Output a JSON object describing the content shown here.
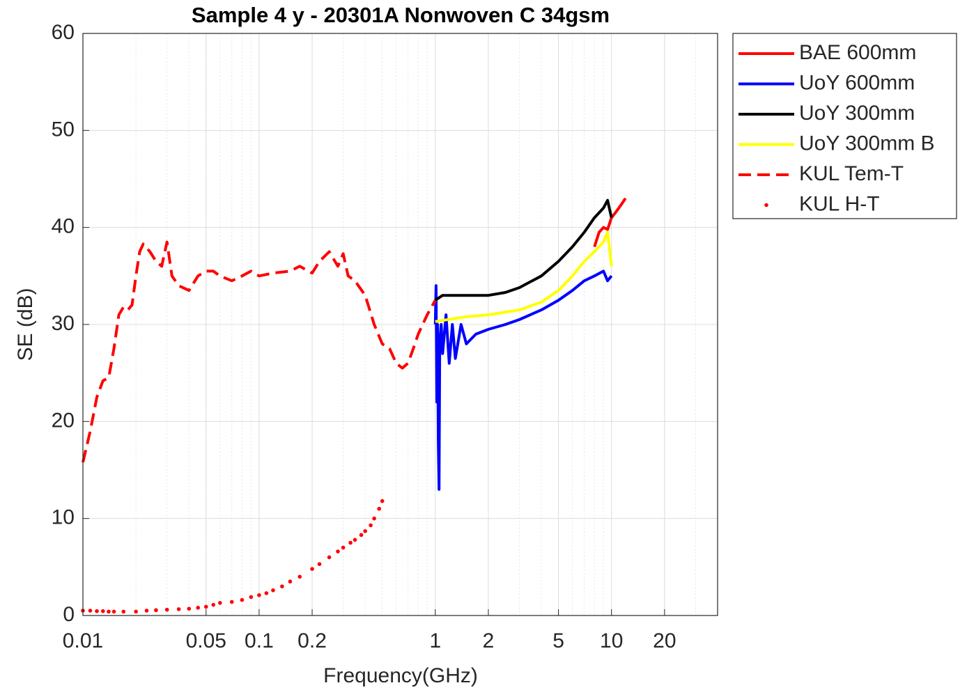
{
  "chart_data": {
    "type": "line",
    "title": "Sample 4 y - 20301A Nonwoven C 34gsm",
    "x_label": "Frequency(GHz)",
    "y_label": "SE (dB)",
    "x_scale": "log",
    "xlim": [
      0.01,
      40
    ],
    "ylim": [
      0,
      60
    ],
    "xticks": [
      0.01,
      0.05,
      0.1,
      0.2,
      1,
      2,
      5,
      10,
      20
    ],
    "yticks": [
      0,
      10,
      20,
      30,
      40,
      50,
      60
    ],
    "grid": true,
    "minor_grid": true,
    "legend": "outside-top-right",
    "series": [
      {
        "name": "BAE 600mm",
        "color": "#ff0000",
        "line_style": "solid",
        "x": [
          8,
          8.5,
          9,
          9.5,
          10,
          10.5,
          11,
          11.5,
          12
        ],
        "values": [
          38,
          39.5,
          40,
          39.8,
          41,
          41.5,
          42,
          42.5,
          43
        ]
      },
      {
        "name": "UoY 600mm",
        "color": "#0000ff",
        "line_style": "solid",
        "x": [
          1,
          1.01,
          1.02,
          1.03,
          1.04,
          1.05,
          1.06,
          1.08,
          1.1,
          1.15,
          1.2,
          1.25,
          1.3,
          1.4,
          1.5,
          1.7,
          2,
          2.5,
          3,
          4,
          5,
          6,
          7,
          8,
          9,
          9.5,
          10
        ],
        "values": [
          30,
          34,
          22,
          30,
          18,
          13,
          28,
          30,
          27,
          31,
          26,
          30,
          26.5,
          30,
          28,
          29,
          29.5,
          30,
          30.5,
          31.5,
          32.5,
          33.5,
          34.5,
          35,
          35.5,
          34.5,
          35
        ]
      },
      {
        "name": "UoY 300mm",
        "color": "#000000",
        "line_style": "solid",
        "x": [
          1,
          1.1,
          1.2,
          1.5,
          2,
          2.5,
          3,
          4,
          5,
          6,
          7,
          8,
          9,
          9.5,
          10
        ],
        "values": [
          32.5,
          33,
          33,
          33,
          33,
          33.3,
          33.8,
          35,
          36.5,
          38,
          39.5,
          41,
          42,
          42.8,
          41
        ]
      },
      {
        "name": "UoY 300mm B",
        "color": "#ffff00",
        "line_style": "solid",
        "x": [
          1,
          1.5,
          2,
          3,
          4,
          5,
          6,
          7,
          8,
          9,
          9.5,
          10
        ],
        "values": [
          30.3,
          30.8,
          31,
          31.5,
          32.3,
          33.5,
          35,
          36.5,
          37.5,
          38.5,
          39.5,
          36
        ]
      },
      {
        "name": "KUL Tem-T",
        "color": "#ff0000",
        "line_style": "dashed",
        "x": [
          0.01,
          0.011,
          0.012,
          0.013,
          0.014,
          0.015,
          0.016,
          0.017,
          0.018,
          0.019,
          0.02,
          0.021,
          0.022,
          0.024,
          0.026,
          0.028,
          0.03,
          0.032,
          0.035,
          0.04,
          0.045,
          0.05,
          0.055,
          0.06,
          0.07,
          0.08,
          0.09,
          0.1,
          0.12,
          0.15,
          0.17,
          0.2,
          0.22,
          0.25,
          0.28,
          0.3,
          0.32,
          0.35,
          0.4,
          0.45,
          0.5,
          0.55,
          0.6,
          0.65,
          0.7,
          0.75,
          0.8,
          0.9,
          1
        ],
        "values": [
          15.8,
          19,
          22.5,
          24.2,
          24.5,
          27.5,
          31,
          31.8,
          31.5,
          32,
          35,
          37.5,
          38.3,
          37.5,
          36.5,
          36,
          38.5,
          35,
          34,
          33.5,
          35,
          35.5,
          35.5,
          35,
          34.5,
          35,
          35.5,
          35,
          35.3,
          35.5,
          36,
          35.3,
          36.5,
          37.5,
          36,
          37.3,
          35,
          34.5,
          33,
          30,
          28,
          27.5,
          26,
          25.5,
          26,
          27.5,
          29,
          31,
          32.5
        ]
      },
      {
        "name": "KUL H-T",
        "color": "#ff0000",
        "line_style": "none",
        "marker": ".",
        "x": [
          0.01,
          0.011,
          0.012,
          0.013,
          0.014,
          0.015,
          0.017,
          0.02,
          0.023,
          0.026,
          0.03,
          0.035,
          0.04,
          0.045,
          0.05,
          0.055,
          0.06,
          0.07,
          0.08,
          0.09,
          0.1,
          0.11,
          0.12,
          0.135,
          0.15,
          0.17,
          0.2,
          0.22,
          0.25,
          0.28,
          0.3,
          0.33,
          0.35,
          0.38,
          0.4,
          0.43,
          0.45,
          0.48,
          0.5
        ],
        "values": [
          0.5,
          0.5,
          0.45,
          0.45,
          0.4,
          0.4,
          0.4,
          0.4,
          0.5,
          0.55,
          0.6,
          0.65,
          0.7,
          0.8,
          0.9,
          1.1,
          1.3,
          1.4,
          1.6,
          1.9,
          2.1,
          2.3,
          2.6,
          3.0,
          3.5,
          4.0,
          4.8,
          5.3,
          6.0,
          6.6,
          7.0,
          7.5,
          7.8,
          8.3,
          8.7,
          9.3,
          10.0,
          11.0,
          11.8
        ]
      }
    ]
  }
}
